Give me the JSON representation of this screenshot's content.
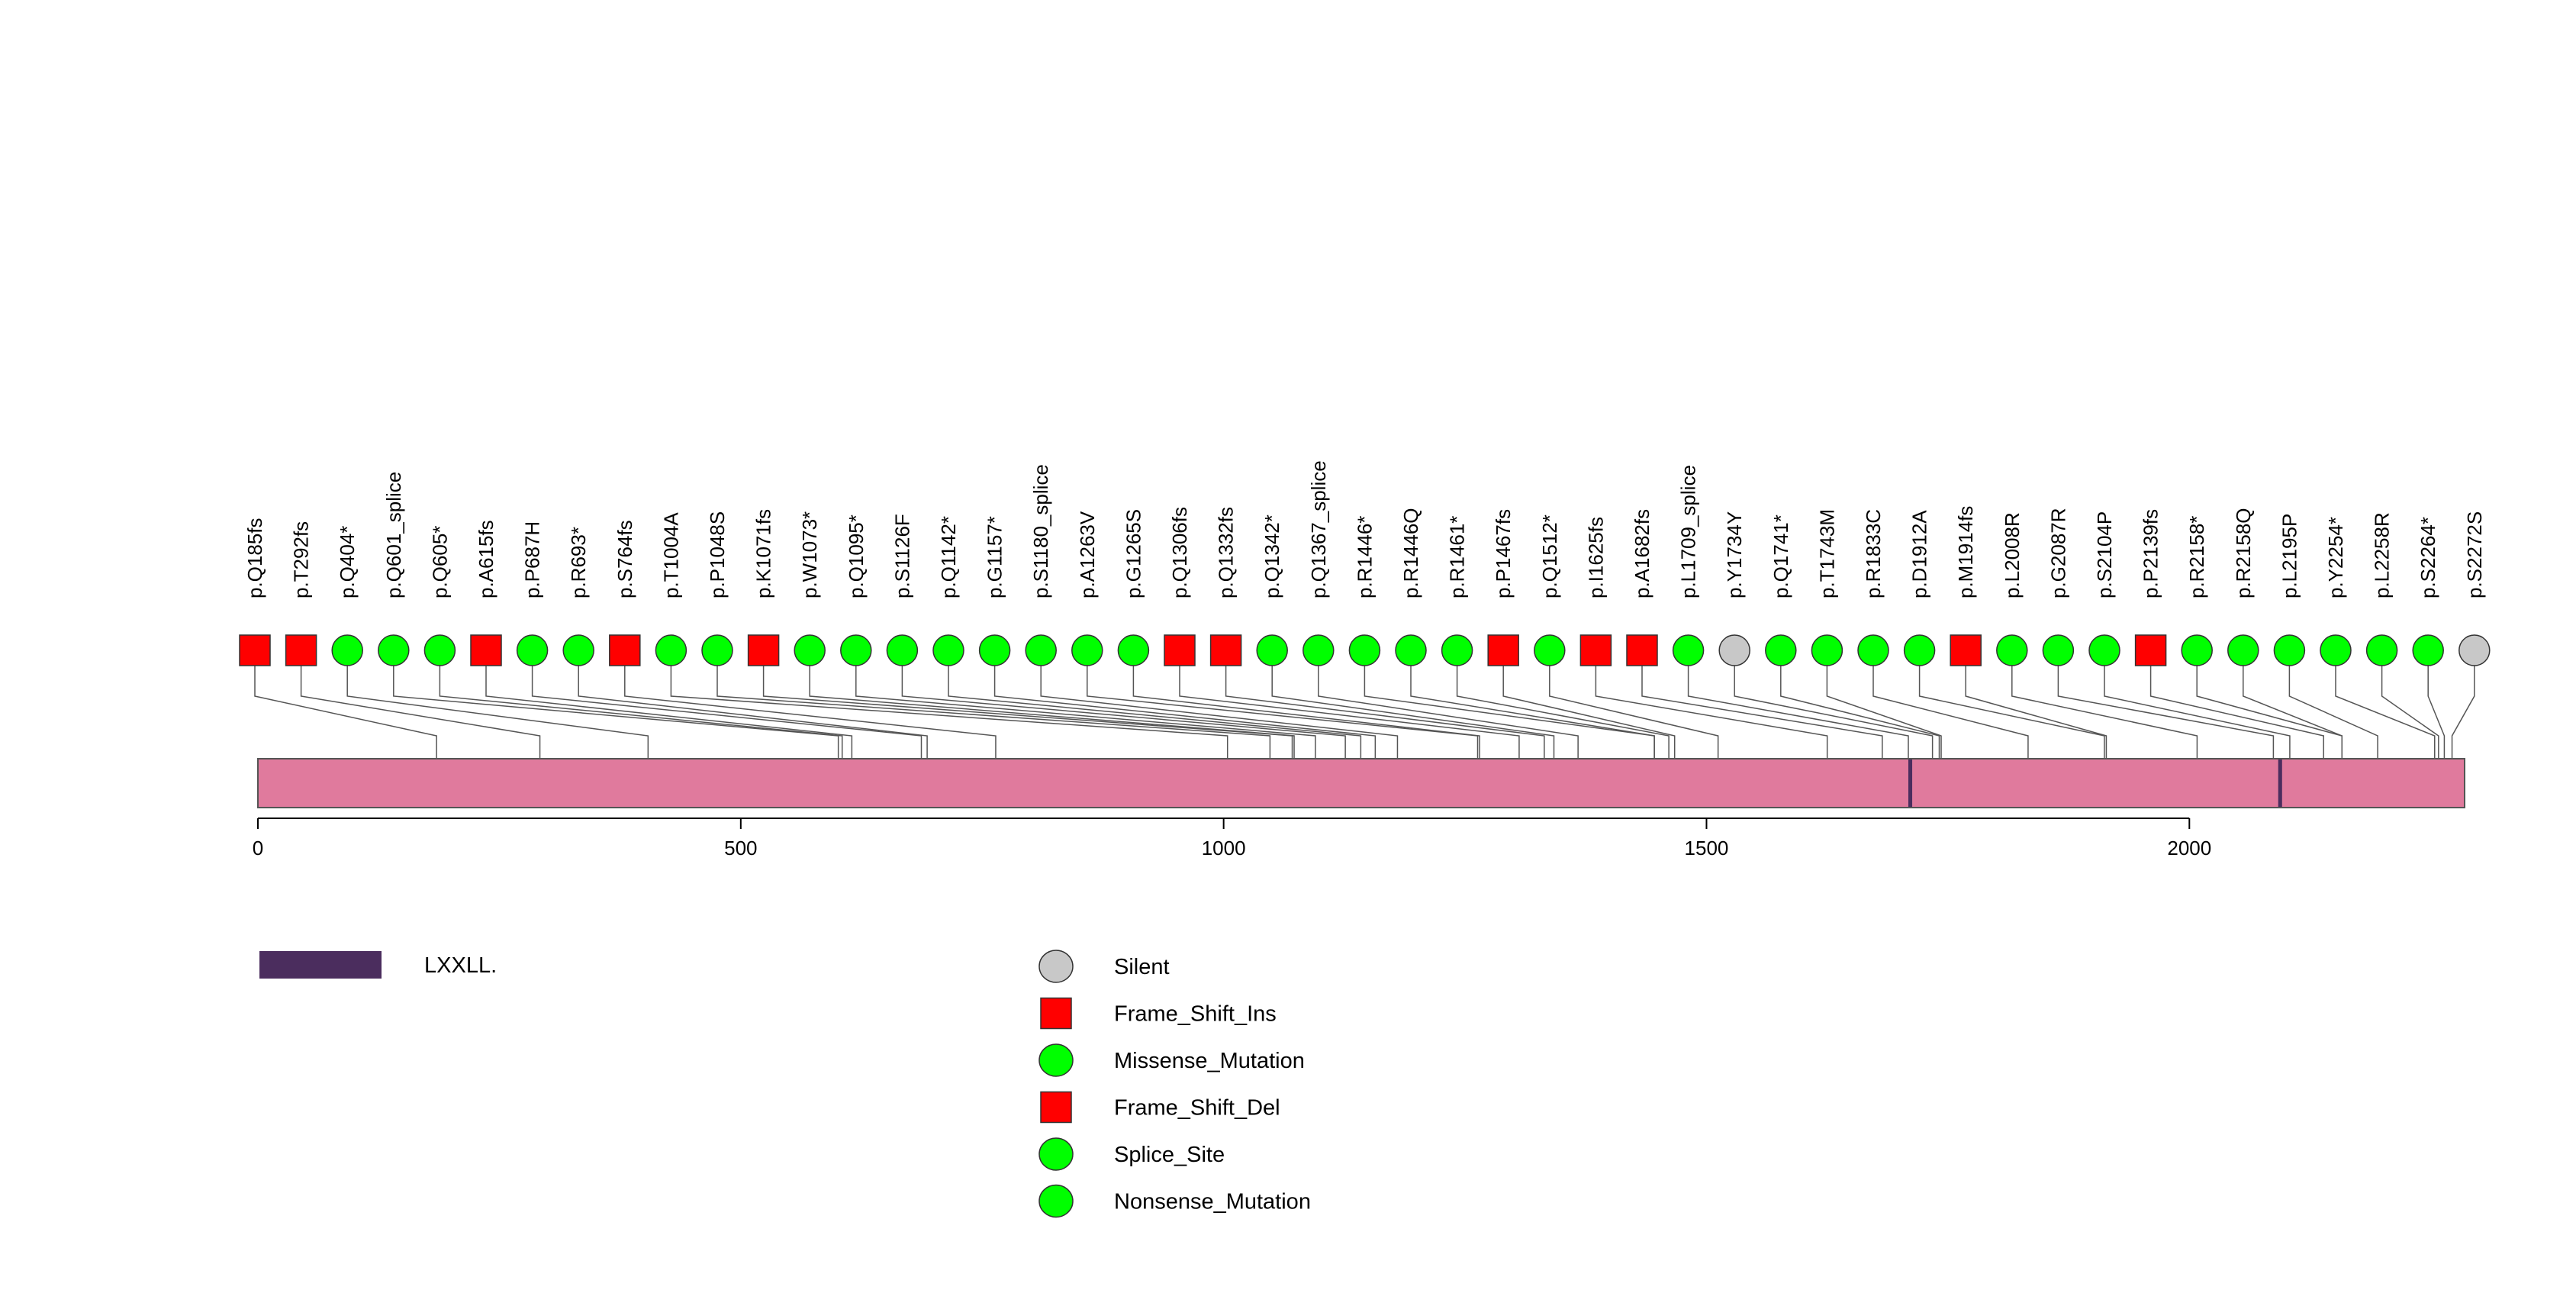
{
  "colors": {
    "protein": "#E07A9D",
    "domain_lxxll": "#4B2D5E",
    "frame_shift": "#FF0000",
    "green": "#00FF00",
    "silent": "#C8C8C8",
    "line": "#555555",
    "axis": "#000000"
  },
  "chart_data": {
    "type": "lollipop",
    "protein_length": 2285,
    "x_ticks": [
      0,
      500,
      1000,
      1500,
      2000
    ],
    "domain_regions": [
      {
        "name": "LXXLL",
        "start": 1709,
        "end": 1713
      },
      {
        "name": "LXXLL",
        "start": 2092,
        "end": 2096
      }
    ],
    "mutations": [
      {
        "label": "p.Q185fs",
        "pos": 185,
        "type": "Frame_Shift_Del"
      },
      {
        "label": "p.T292fs",
        "pos": 292,
        "type": "Frame_Shift_Del"
      },
      {
        "label": "p.Q404*",
        "pos": 404,
        "type": "Nonsense_Mutation"
      },
      {
        "label": "p.Q601_splice",
        "pos": 601,
        "type": "Splice_Site"
      },
      {
        "label": "p.Q605*",
        "pos": 605,
        "type": "Nonsense_Mutation"
      },
      {
        "label": "p.A615fs",
        "pos": 615,
        "type": "Frame_Shift_Ins"
      },
      {
        "label": "p.P687H",
        "pos": 687,
        "type": "Missense_Mutation"
      },
      {
        "label": "p.R693*",
        "pos": 693,
        "type": "Nonsense_Mutation"
      },
      {
        "label": "p.S764fs",
        "pos": 764,
        "type": "Frame_Shift_Del"
      },
      {
        "label": "p.T1004A",
        "pos": 1004,
        "type": "Missense_Mutation"
      },
      {
        "label": "p.P1048S",
        "pos": 1048,
        "type": "Missense_Mutation"
      },
      {
        "label": "p.K1071fs",
        "pos": 1071,
        "type": "Frame_Shift_Del"
      },
      {
        "label": "p.W1073*",
        "pos": 1073,
        "type": "Nonsense_Mutation"
      },
      {
        "label": "p.Q1095*",
        "pos": 1095,
        "type": "Nonsense_Mutation"
      },
      {
        "label": "p.S1126F",
        "pos": 1126,
        "type": "Missense_Mutation"
      },
      {
        "label": "p.Q1142*",
        "pos": 1142,
        "type": "Nonsense_Mutation"
      },
      {
        "label": "p.G1157*",
        "pos": 1157,
        "type": "Nonsense_Mutation"
      },
      {
        "label": "p.S1180_splice",
        "pos": 1180,
        "type": "Splice_Site"
      },
      {
        "label": "p.A1263V",
        "pos": 1263,
        "type": "Missense_Mutation"
      },
      {
        "label": "p.G1265S",
        "pos": 1265,
        "type": "Missense_Mutation"
      },
      {
        "label": "p.Q1306fs",
        "pos": 1306,
        "type": "Frame_Shift_Del"
      },
      {
        "label": "p.Q1332fs",
        "pos": 1332,
        "type": "Frame_Shift_Del"
      },
      {
        "label": "p.Q1342*",
        "pos": 1342,
        "type": "Nonsense_Mutation"
      },
      {
        "label": "p.Q1367_splice",
        "pos": 1367,
        "type": "Splice_Site"
      },
      {
        "label": "p.R1446*",
        "pos": 1446,
        "type": "Nonsense_Mutation"
      },
      {
        "label": "p.R1446Q",
        "pos": 1446,
        "type": "Missense_Mutation"
      },
      {
        "label": "p.R1461*",
        "pos": 1461,
        "type": "Nonsense_Mutation"
      },
      {
        "label": "p.P1467fs",
        "pos": 1467,
        "type": "Frame_Shift_Del"
      },
      {
        "label": "p.Q1512*",
        "pos": 1512,
        "type": "Nonsense_Mutation"
      },
      {
        "label": "p.I1625fs",
        "pos": 1625,
        "type": "Frame_Shift_Del"
      },
      {
        "label": "p.A1682fs",
        "pos": 1682,
        "type": "Frame_Shift_Del"
      },
      {
        "label": "p.L1709_splice",
        "pos": 1709,
        "type": "Splice_Site"
      },
      {
        "label": "p.Y1734Y",
        "pos": 1734,
        "type": "Silent"
      },
      {
        "label": "p.Q1741*",
        "pos": 1741,
        "type": "Nonsense_Mutation"
      },
      {
        "label": "p.T1743M",
        "pos": 1743,
        "type": "Missense_Mutation"
      },
      {
        "label": "p.R1833C",
        "pos": 1833,
        "type": "Missense_Mutation"
      },
      {
        "label": "p.D1912A",
        "pos": 1912,
        "type": "Missense_Mutation"
      },
      {
        "label": "p.M1914fs",
        "pos": 1914,
        "type": "Frame_Shift_Del"
      },
      {
        "label": "p.L2008R",
        "pos": 2008,
        "type": "Missense_Mutation"
      },
      {
        "label": "p.G2087R",
        "pos": 2087,
        "type": "Missense_Mutation"
      },
      {
        "label": "p.S2104P",
        "pos": 2104,
        "type": "Missense_Mutation"
      },
      {
        "label": "p.P2139fs",
        "pos": 2139,
        "type": "Frame_Shift_Del"
      },
      {
        "label": "p.R2158*",
        "pos": 2158,
        "type": "Nonsense_Mutation"
      },
      {
        "label": "p.R2158Q",
        "pos": 2158,
        "type": "Missense_Mutation"
      },
      {
        "label": "p.L2195P",
        "pos": 2195,
        "type": "Missense_Mutation"
      },
      {
        "label": "p.Y2254*",
        "pos": 2254,
        "type": "Nonsense_Mutation"
      },
      {
        "label": "p.L2258R",
        "pos": 2258,
        "type": "Missense_Mutation"
      },
      {
        "label": "p.S2264*",
        "pos": 2264,
        "type": "Nonsense_Mutation"
      },
      {
        "label": "p.S2272S",
        "pos": 2272,
        "type": "Silent"
      }
    ],
    "legend_domains": [
      {
        "label": "LXXLL."
      }
    ],
    "legend_types": [
      {
        "label": "Silent",
        "shape": "circle",
        "color": "#C8C8C8"
      },
      {
        "label": "Frame_Shift_Ins",
        "shape": "square",
        "color": "#FF0000"
      },
      {
        "label": "Missense_Mutation",
        "shape": "circle",
        "color": "#00FF00"
      },
      {
        "label": "Frame_Shift_Del",
        "shape": "square",
        "color": "#FF0000"
      },
      {
        "label": "Splice_Site",
        "shape": "circle",
        "color": "#00FF00"
      },
      {
        "label": "Nonsense_Mutation",
        "shape": "circle",
        "color": "#00FF00"
      }
    ]
  }
}
